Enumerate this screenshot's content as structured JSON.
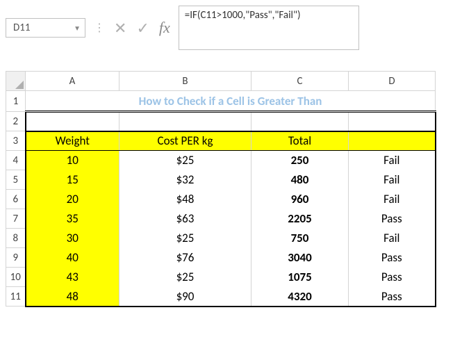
{
  "namebox": {
    "value": "D11"
  },
  "formula": {
    "value": "=IF(C11>1000,\"Pass\",\"Fail\")"
  },
  "columns": {
    "A": "A",
    "B": "B",
    "C": "C",
    "D": "D"
  },
  "rowlabels": [
    "1",
    "2",
    "3",
    "4",
    "5",
    "6",
    "7",
    "8",
    "9",
    "10",
    "11"
  ],
  "title": "How to Check if a Cell is Greater Than",
  "headers": {
    "A": "Weight",
    "B": "Cost PER kg",
    "C": "Total",
    "D": ""
  },
  "rows": [
    {
      "A": "10",
      "B": "$25",
      "C": "250",
      "D": "Fail"
    },
    {
      "A": "15",
      "B": "$32",
      "C": "480",
      "D": "Fail"
    },
    {
      "A": "20",
      "B": "$48",
      "C": "960",
      "D": "Fail"
    },
    {
      "A": "35",
      "B": "$63",
      "C": "2205",
      "D": "Pass"
    },
    {
      "A": "30",
      "B": "$25",
      "C": "750",
      "D": "Fail"
    },
    {
      "A": "40",
      "B": "$76",
      "C": "3040",
      "D": "Pass"
    },
    {
      "A": "43",
      "B": "$25",
      "C": "1075",
      "D": "Pass"
    },
    {
      "A": "48",
      "B": "$90",
      "C": "4320",
      "D": "Pass"
    }
  ],
  "colors": {
    "highlight": "#ffff00",
    "title_text": "#9cc3e6",
    "grid": "#d4d4d4"
  }
}
